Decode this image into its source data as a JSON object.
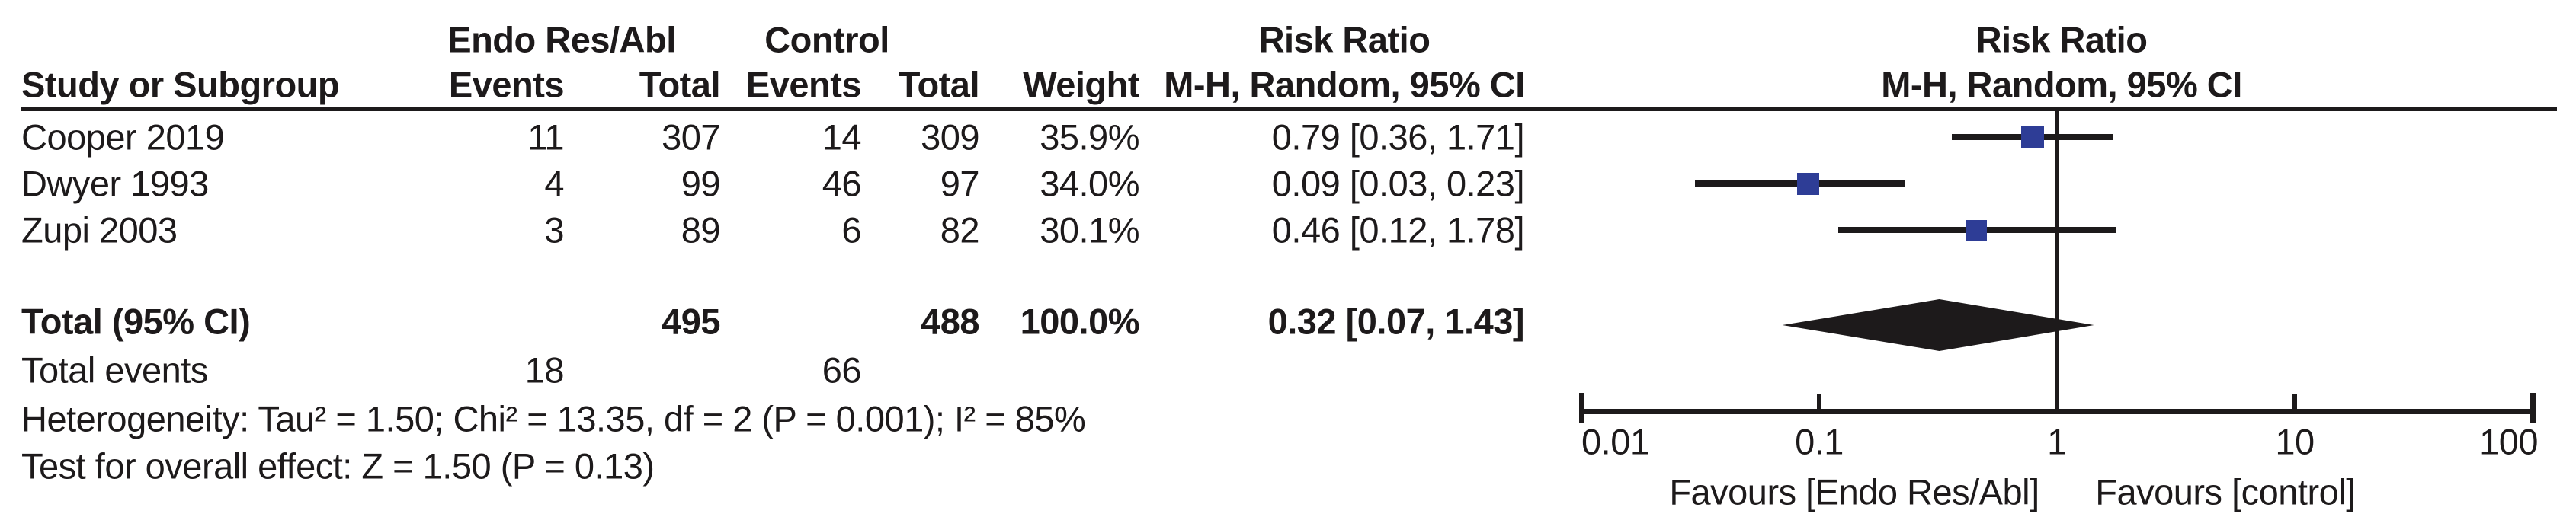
{
  "colors": {
    "square_blue": "#2e3d96",
    "ink": "#1d1a1b"
  },
  "table": {
    "header_row1": {
      "group_treatment": "Endo Res/Abl",
      "group_control": "Control",
      "risk_ratio": "Risk Ratio"
    },
    "header_row2": {
      "study": "Study or Subgroup",
      "events": "Events",
      "total": "Total",
      "events2": "Events",
      "total2": "Total",
      "weight": "Weight",
      "method": "M-H, Random, 95% CI"
    },
    "rows": [
      {
        "study": "Cooper 2019",
        "e1": "11",
        "t1": "307",
        "e2": "14",
        "t2": "309",
        "weight": "35.9%",
        "rr": "0.79 [0.36, 1.71]"
      },
      {
        "study": "Dwyer 1993",
        "e1": "4",
        "t1": "99",
        "e2": "46",
        "t2": "97",
        "weight": "34.0%",
        "rr": "0.09 [0.03, 0.23]"
      },
      {
        "study": "Zupi 2003",
        "e1": "3",
        "t1": "89",
        "e2": "6",
        "t2": "82",
        "weight": "30.1%",
        "rr": "0.46 [0.12, 1.78]"
      }
    ],
    "total_row": {
      "label": "Total (95% CI)",
      "t1": "495",
      "t2": "488",
      "weight": "100.0%",
      "rr": "0.32 [0.07, 1.43]"
    },
    "total_events": {
      "label": "Total events",
      "e1": "18",
      "e2": "66"
    },
    "heterogeneity": "Heterogeneity: Tau² = 1.50; Chi² = 13.35, df = 2 (P = 0.001); I² = 85%",
    "overall_effect": "Test for overall effect: Z = 1.50 (P = 0.13)"
  },
  "plot": {
    "header1": "Risk Ratio",
    "header2": "M-H, Random, 95% CI",
    "tick_labels": [
      "0.01",
      "0.1",
      "1",
      "10",
      "100"
    ],
    "favours_left": "Favours [Endo Res/Abl]",
    "favours_right": "Favours [control]"
  },
  "chart_data": {
    "type": "forest",
    "effect_measure": "Risk Ratio, M-H, Random, 95% CI",
    "x_scale": "log10",
    "xlim": [
      0.01,
      100
    ],
    "ticks": [
      0.01,
      0.1,
      1,
      10,
      100
    ],
    "ref_line": 1,
    "studies": [
      {
        "name": "Cooper 2019",
        "rr": 0.79,
        "ci_low": 0.36,
        "ci_high": 1.71,
        "weight_pct": 35.9
      },
      {
        "name": "Dwyer 1993",
        "rr": 0.09,
        "ci_low": 0.03,
        "ci_high": 0.23,
        "weight_pct": 34.0
      },
      {
        "name": "Zupi 2003",
        "rr": 0.46,
        "ci_low": 0.12,
        "ci_high": 1.78,
        "weight_pct": 30.1
      }
    ],
    "total": {
      "rr": 0.32,
      "ci_low": 0.07,
      "ci_high": 1.43
    }
  }
}
